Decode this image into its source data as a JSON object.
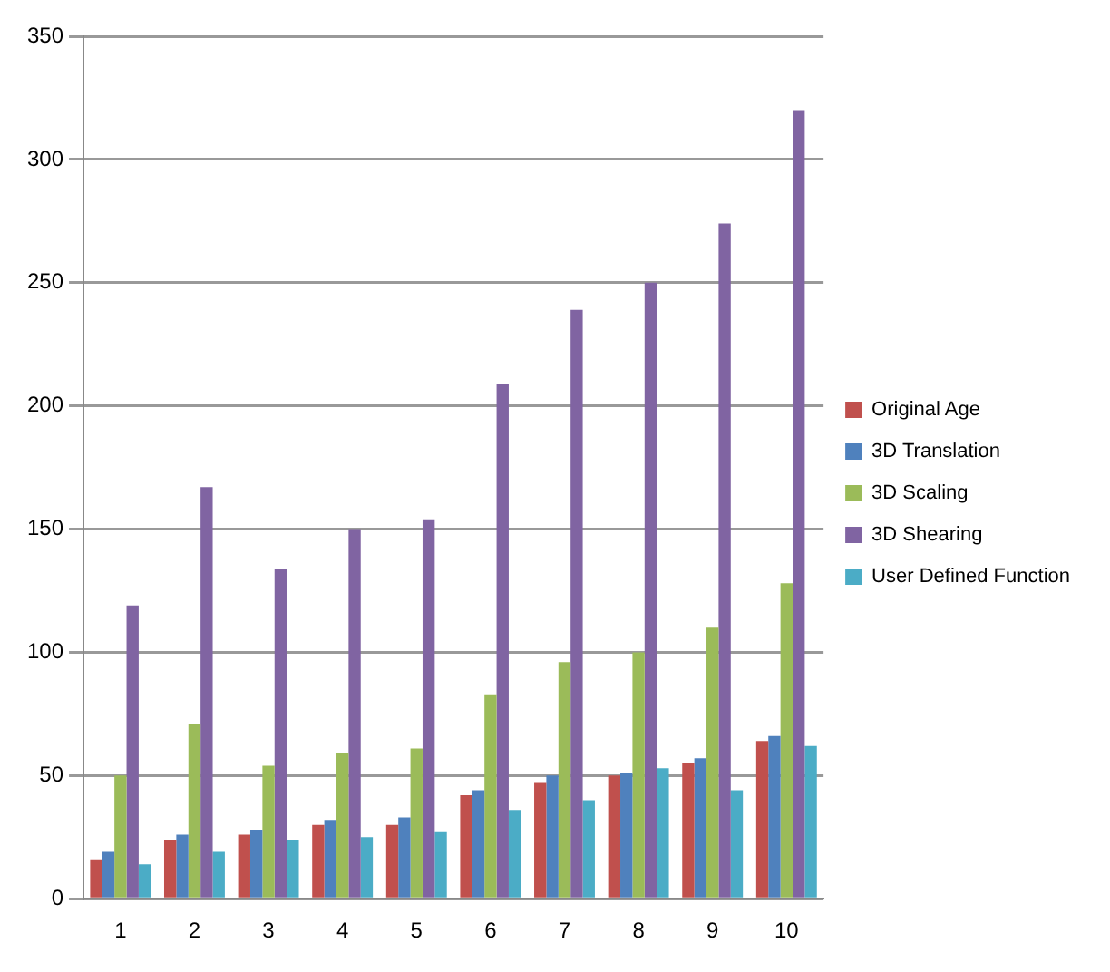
{
  "chart_data": {
    "type": "bar",
    "categories": [
      "1",
      "2",
      "3",
      "4",
      "5",
      "6",
      "7",
      "8",
      "9",
      "10"
    ],
    "series": [
      {
        "name": "Original Age",
        "color": "#c0504d",
        "values": [
          16,
          24,
          26,
          30,
          30,
          42,
          47,
          50,
          55,
          64
        ]
      },
      {
        "name": "3D Translation",
        "color": "#4f81bd",
        "values": [
          19,
          26,
          28,
          32,
          33,
          44,
          50,
          51,
          57,
          66
        ]
      },
      {
        "name": "3D Scaling",
        "color": "#9bbb59",
        "values": [
          50,
          71,
          54,
          59,
          61,
          83,
          96,
          100,
          110,
          128
        ]
      },
      {
        "name": "3D Shearing",
        "color": "#8064a2",
        "values": [
          119,
          167,
          134,
          150,
          154,
          209,
          239,
          250,
          274,
          320
        ]
      },
      {
        "name": "User Defined Function",
        "color": "#4bacc6",
        "values": [
          14,
          19,
          24,
          25,
          27,
          36,
          40,
          53,
          44,
          62
        ]
      }
    ],
    "ylim": [
      0,
      350
    ],
    "yticks": [
      0,
      50,
      100,
      150,
      200,
      250,
      300,
      350
    ],
    "grid": "y",
    "legend": "right"
  }
}
